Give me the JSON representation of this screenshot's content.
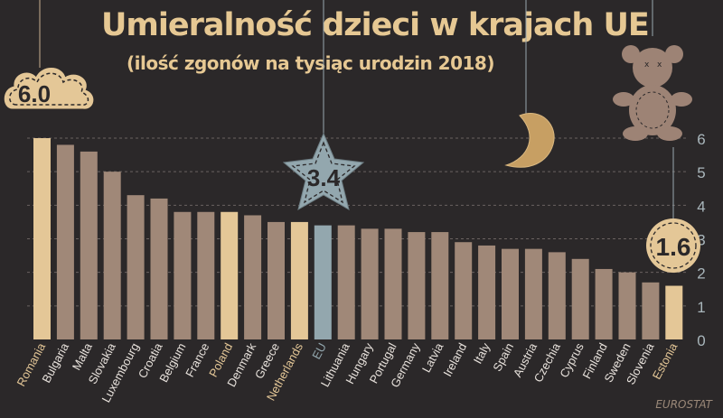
{
  "title": "Umieralność dzieci w krajach UE",
  "subtitle": "(ilość zgonów na tysiąc urodzin 2018)",
  "source": "EUROSTAT",
  "callouts": {
    "max": "6.0",
    "eu": "3.4",
    "min": "1.6"
  },
  "colors": {
    "background": "#2b2829",
    "bar": "#a08878",
    "highlight": "#e4c797",
    "eu": "#93a7ae",
    "title": "#e6c893",
    "axis": "#a9b6bb"
  },
  "chart_data": {
    "type": "bar",
    "title": "Umieralność dzieci w krajach UE",
    "subtitle": "(ilość zgonów na tysiąc urodzin 2018)",
    "categories": [
      "Romania",
      "Bulgaria",
      "Malta",
      "Slovakia",
      "Luxembourg",
      "Croatia",
      "Belgium",
      "France",
      "Poland",
      "Denmark",
      "Greece",
      "Netherlands",
      "EU",
      "Lithuania",
      "Hungary",
      "Portugal",
      "Germany",
      "Latvia",
      "Ireland",
      "Italy",
      "Spain",
      "Austria",
      "Czechia",
      "Cyprus",
      "Finland",
      "Sweden",
      "Slovenia",
      "Estonia"
    ],
    "values": [
      6.0,
      5.8,
      5.6,
      5.0,
      4.3,
      4.2,
      3.8,
      3.8,
      3.8,
      3.7,
      3.5,
      3.5,
      3.4,
      3.4,
      3.3,
      3.3,
      3.2,
      3.2,
      2.9,
      2.8,
      2.7,
      2.7,
      2.6,
      2.4,
      2.1,
      2.0,
      1.7,
      1.6
    ],
    "highlighted": [
      "Romania",
      "Poland",
      "Netherlands",
      "Estonia"
    ],
    "reference": "EU",
    "ylim": [
      0,
      6
    ],
    "yticks": [
      0,
      1,
      2,
      3,
      4,
      5,
      6
    ],
    "yaxis_position": "right",
    "grid": true
  }
}
